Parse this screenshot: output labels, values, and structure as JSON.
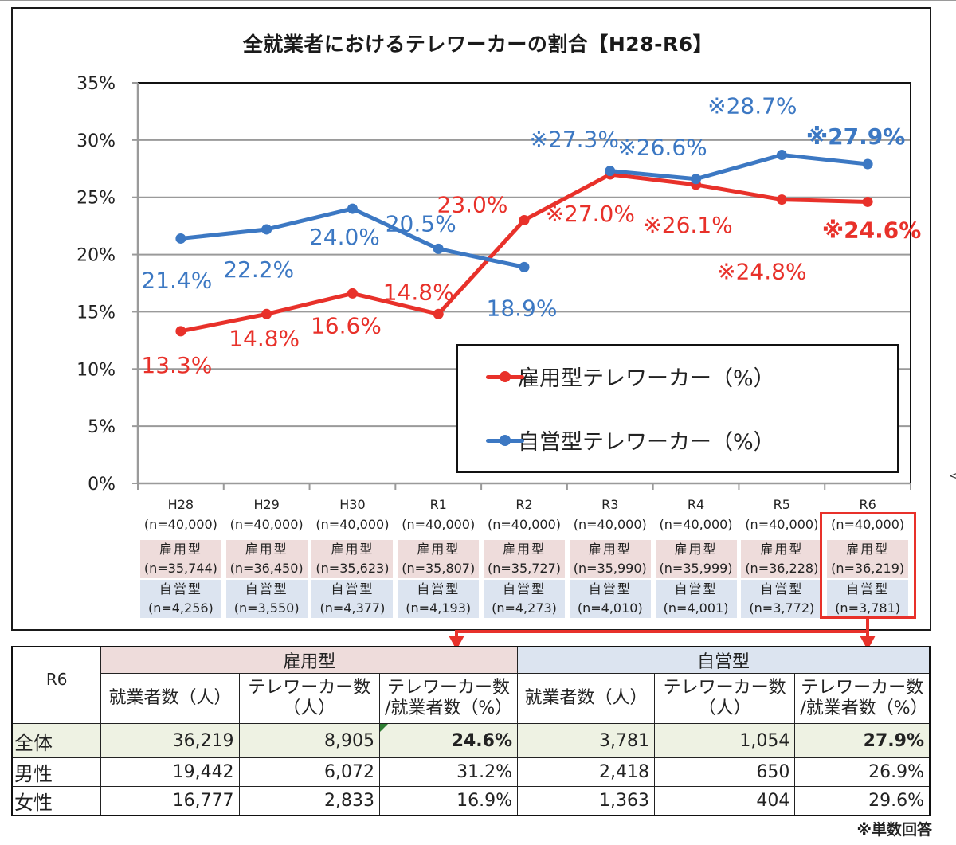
{
  "chart_data": {
    "type": "line",
    "title": "全就業者におけるテレワーカーの割合【H28-R6】",
    "xlabel": "",
    "ylabel": "",
    "ylim": [
      0,
      35
    ],
    "yticks": [
      "0%",
      "5%",
      "10%",
      "15%",
      "20%",
      "25%",
      "30%",
      "35%"
    ],
    "ytick_values": [
      0,
      5,
      10,
      15,
      20,
      25,
      30,
      35
    ],
    "grid": true,
    "legend_position": "bottom-right",
    "categories": [
      "H28",
      "H29",
      "H30",
      "R1",
      "R2",
      "R3",
      "R4",
      "R5",
      "R6"
    ],
    "category_n": [
      "(n=40,000)",
      "(n=40,000)",
      "(n=40,000)",
      "(n=40,000)",
      "(n=40,000)",
      "(n=40,000)",
      "(n=40,000)",
      "(n=40,000)",
      "(n=40,000)"
    ],
    "series": [
      {
        "name": "雇用型テレワーカー（%）",
        "color": "#e8312a",
        "values": [
          13.3,
          14.8,
          16.6,
          14.8,
          23.0,
          27.0,
          26.1,
          24.8,
          24.6
        ],
        "labels": [
          "13.3%",
          "14.8%",
          "16.6%",
          "14.8%",
          "23.0%",
          "※27.0%",
          "※26.1%",
          "※24.8%",
          "※24.6%"
        ],
        "sample_label": "雇用型",
        "sample_n": [
          "(n=35,744)",
          "(n=36,450)",
          "(n=35,623)",
          "(n=35,807)",
          "(n=35,727)",
          "(n=35,990)",
          "(n=35,999)",
          "(n=36,228)",
          "(n=36,219)"
        ]
      },
      {
        "name": "自営型テレワーカー（%）",
        "color": "#3c78c3",
        "values": [
          21.4,
          22.2,
          24.0,
          20.5,
          18.9,
          27.3,
          26.6,
          28.7,
          27.9
        ],
        "labels": [
          "21.4%",
          "22.2%",
          "24.0%",
          "20.5%",
          "18.9%",
          "※27.3%",
          "※26.6%",
          "※28.7%",
          "※27.9%"
        ],
        "sample_label": "自営型",
        "sample_n": [
          "(n=4,256)",
          "(n=3,550)",
          "(n=4,377)",
          "(n=4,193)",
          "(n=4,273)",
          "(n=4,010)",
          "(n=4,001)",
          "(n=3,772)",
          "(n=3,781)"
        ]
      }
    ],
    "series_break_after": "R2"
  },
  "table": {
    "corner": "R6",
    "groups": [
      "雇用型",
      "自営型"
    ],
    "col_headers": [
      "就業者数（人）",
      "テレワーカー数\n（人）",
      "テレワーカー数\n/就業者数（%）"
    ],
    "rows": [
      {
        "label": "全体",
        "values": [
          "36,219",
          "8,905",
          "24.6%",
          "3,781",
          "1,054",
          "27.9%"
        ]
      },
      {
        "label": "男性",
        "values": [
          "19,442",
          "6,072",
          "31.2%",
          "2,418",
          "650",
          "26.9%"
        ]
      },
      {
        "label": "女性",
        "values": [
          "16,777",
          "2,833",
          "16.9%",
          "1,363",
          "404",
          "29.6%"
        ]
      }
    ]
  },
  "highlight_color": "#e8312a",
  "note": "※単数回答",
  "stray_glyph": "<"
}
